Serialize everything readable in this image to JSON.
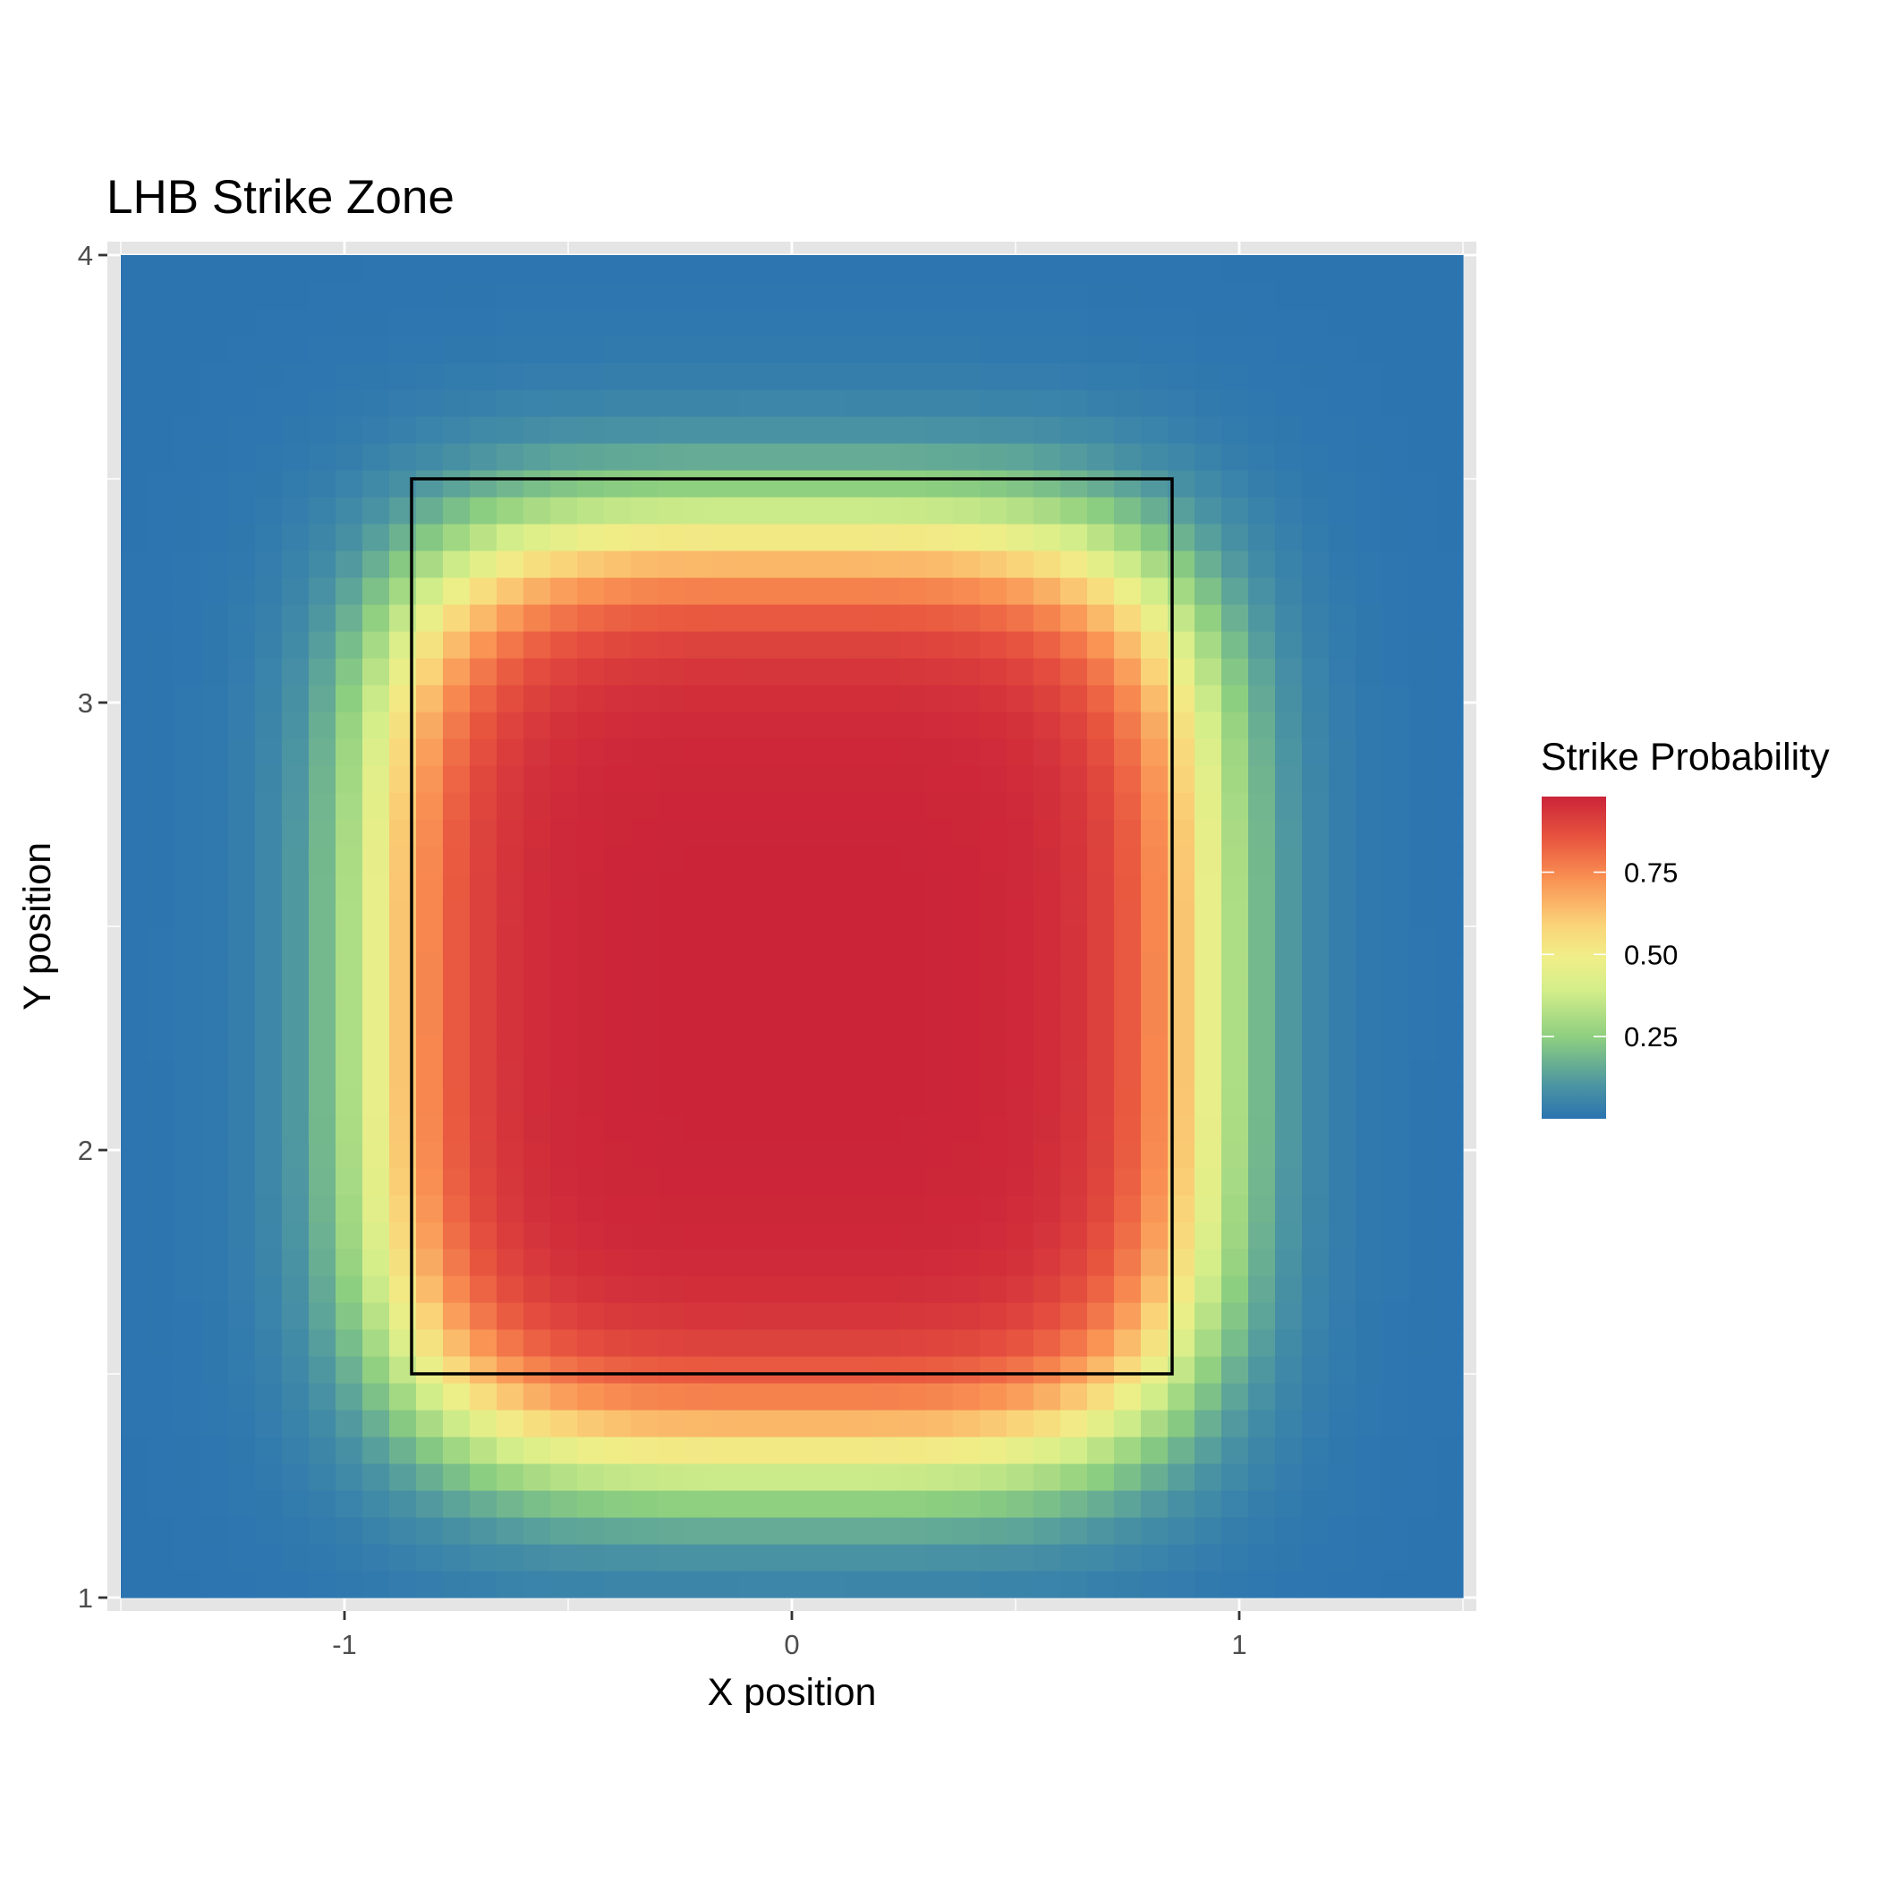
{
  "chart_data": {
    "type": "heatmap",
    "title": "LHB Strike Zone",
    "xlabel": "X position",
    "ylabel": "Y position",
    "xlim": [
      -1.53,
      1.53
    ],
    "ylim": [
      0.97,
      4.03
    ],
    "x_ticks": [
      {
        "value": -1,
        "label": "-1"
      },
      {
        "value": 0,
        "label": "0"
      },
      {
        "value": 1,
        "label": "1"
      }
    ],
    "y_ticks": [
      {
        "value": 1,
        "label": "1"
      },
      {
        "value": 2,
        "label": "2"
      },
      {
        "value": 3,
        "label": "3"
      },
      {
        "value": 4,
        "label": "4"
      }
    ],
    "grid": true,
    "legend": {
      "title": "Strike Probability",
      "placement": "right",
      "value_range": [
        0.0,
        0.98
      ],
      "breaks": [
        {
          "value": 0.75,
          "label": "0.75"
        },
        {
          "value": 0.5,
          "label": "0.50"
        },
        {
          "value": 0.25,
          "label": "0.25"
        }
      ]
    },
    "colorscale": [
      {
        "stop": 0.0,
        "color": "#2b74b0"
      },
      {
        "stop": 0.1,
        "color": "#4a93a3"
      },
      {
        "stop": 0.25,
        "color": "#8cce80"
      },
      {
        "stop": 0.4,
        "color": "#d4ee8a"
      },
      {
        "stop": 0.5,
        "color": "#f0ee88"
      },
      {
        "stop": 0.6,
        "color": "#fad479"
      },
      {
        "stop": 0.75,
        "color": "#f98f52"
      },
      {
        "stop": 0.87,
        "color": "#e8553f"
      },
      {
        "stop": 1.0,
        "color": "#cb2439"
      }
    ],
    "grid_spec": {
      "x_start": -1.5,
      "x_end": 1.5,
      "nx": 50,
      "y_start": 1.0,
      "y_end": 4.0,
      "ny": 50
    },
    "probability_model": {
      "center_x": 0.0,
      "center_y": 2.35,
      "half_width": 0.92,
      "half_height": 1.03,
      "shape_exponent": 4.0,
      "softness": 0.1,
      "max_probability": 0.98
    },
    "strike_zone": {
      "x_min": -0.85,
      "x_max": 0.85,
      "y_min": 1.5,
      "y_max": 3.5
    }
  }
}
